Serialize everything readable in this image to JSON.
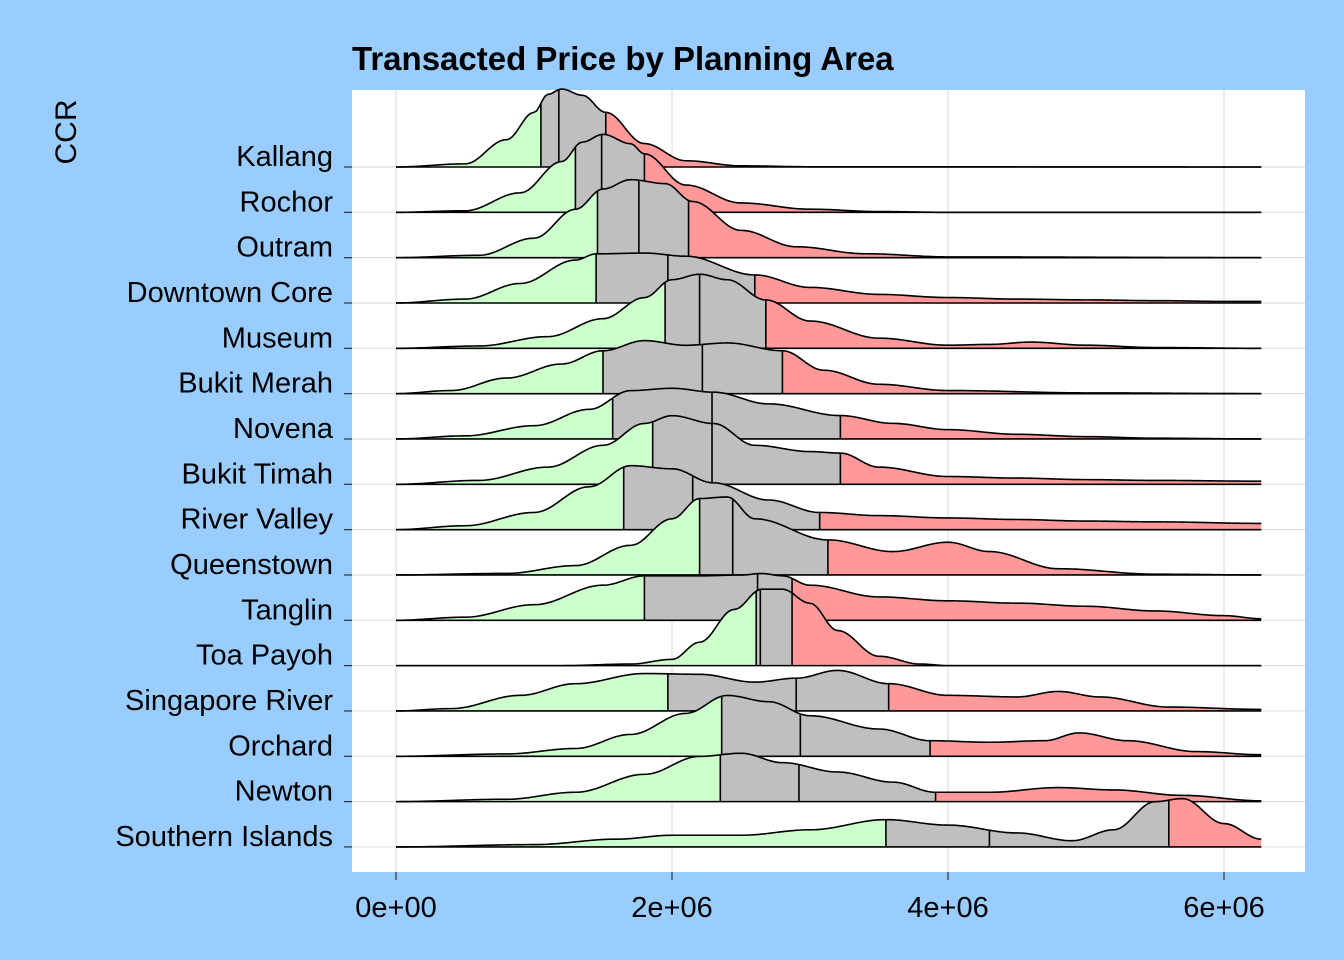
{
  "colors": {
    "background": "#99ccff",
    "panel": "#ffffff",
    "grid": "#e0e0e0",
    "low_tail": "#ccffcc",
    "middle": "#bfbfbf",
    "high_tail": "#ff9999",
    "outline": "#000000"
  },
  "chart_data": {
    "type": "ridgeline",
    "title": "Transacted Price by Planning Area",
    "ylabel": "CCR",
    "xlabel": "",
    "xlim": [
      -320000,
      6600000
    ],
    "xticks": [
      0,
      2000000,
      4000000,
      6000000
    ],
    "xtick_labels": [
      "0e+00",
      "2e+06",
      "4e+06",
      "6e+06"
    ],
    "x_range_drawn": [
      0,
      6270000
    ],
    "grid": true,
    "fill_regions": [
      "low_tail",
      "middle",
      "middle",
      "high_tail"
    ],
    "series": [
      {
        "name": "Kallang",
        "quantiles": [
          1050000,
          1180000,
          1520000
        ],
        "density": [
          [
            0,
            0
          ],
          [
            500000,
            0.04
          ],
          [
            800000,
            0.35
          ],
          [
            1000000,
            0.7
          ],
          [
            1100000,
            0.93
          ],
          [
            1200000,
            1.0
          ],
          [
            1350000,
            0.92
          ],
          [
            1520000,
            0.7
          ],
          [
            1800000,
            0.3
          ],
          [
            2100000,
            0.08
          ],
          [
            2500000,
            0.015
          ],
          [
            3000000,
            0.003
          ],
          [
            6270000,
            0
          ]
        ]
      },
      {
        "name": "Rochor",
        "quantiles": [
          1300000,
          1490000,
          1800000
        ],
        "density": [
          [
            0,
            0
          ],
          [
            500000,
            0.02
          ],
          [
            900000,
            0.25
          ],
          [
            1200000,
            0.65
          ],
          [
            1350000,
            0.9
          ],
          [
            1500000,
            1.0
          ],
          [
            1700000,
            0.88
          ],
          [
            1800000,
            0.75
          ],
          [
            2100000,
            0.35
          ],
          [
            2500000,
            0.12
          ],
          [
            3000000,
            0.04
          ],
          [
            3500000,
            0.01
          ],
          [
            4000000,
            0
          ],
          [
            6270000,
            0
          ]
        ]
      },
      {
        "name": "Outram",
        "quantiles": [
          1460000,
          1760000,
          2120000
        ],
        "density": [
          [
            0,
            0
          ],
          [
            600000,
            0.03
          ],
          [
            1000000,
            0.25
          ],
          [
            1300000,
            0.62
          ],
          [
            1500000,
            0.88
          ],
          [
            1700000,
            1.0
          ],
          [
            1950000,
            0.95
          ],
          [
            2150000,
            0.72
          ],
          [
            2500000,
            0.35
          ],
          [
            2900000,
            0.14
          ],
          [
            3400000,
            0.05
          ],
          [
            4000000,
            0.01
          ],
          [
            6270000,
            0
          ]
        ]
      },
      {
        "name": "Downtown Core",
        "quantiles": [
          1450000,
          1970000,
          2600000
        ],
        "density": [
          [
            0,
            0
          ],
          [
            500000,
            0.05
          ],
          [
            900000,
            0.25
          ],
          [
            1300000,
            0.55
          ],
          [
            1450000,
            0.63
          ],
          [
            1800000,
            0.64
          ],
          [
            2100000,
            0.6
          ],
          [
            2600000,
            0.36
          ],
          [
            3000000,
            0.2
          ],
          [
            3500000,
            0.11
          ],
          [
            4000000,
            0.07
          ],
          [
            4500000,
            0.05
          ],
          [
            5000000,
            0.04
          ],
          [
            5500000,
            0.03
          ],
          [
            6000000,
            0.02
          ],
          [
            6270000,
            0.02
          ]
        ]
      },
      {
        "name": "Museum",
        "quantiles": [
          1950000,
          2200000,
          2680000
        ],
        "density": [
          [
            0,
            0
          ],
          [
            600000,
            0.03
          ],
          [
            1100000,
            0.15
          ],
          [
            1500000,
            0.38
          ],
          [
            1800000,
            0.65
          ],
          [
            2000000,
            0.88
          ],
          [
            2200000,
            0.95
          ],
          [
            2400000,
            0.88
          ],
          [
            2680000,
            0.62
          ],
          [
            3000000,
            0.35
          ],
          [
            3500000,
            0.13
          ],
          [
            4000000,
            0.04
          ],
          [
            4300000,
            0.05
          ],
          [
            4600000,
            0.08
          ],
          [
            5000000,
            0.04
          ],
          [
            5500000,
            0.01
          ],
          [
            6270000,
            0
          ]
        ]
      },
      {
        "name": "Bukit Merah",
        "quantiles": [
          1500000,
          2220000,
          2800000
        ],
        "density": [
          [
            0,
            0
          ],
          [
            400000,
            0.04
          ],
          [
            800000,
            0.2
          ],
          [
            1200000,
            0.38
          ],
          [
            1500000,
            0.55
          ],
          [
            1800000,
            0.68
          ],
          [
            2100000,
            0.62
          ],
          [
            2400000,
            0.65
          ],
          [
            2800000,
            0.55
          ],
          [
            3100000,
            0.3
          ],
          [
            3500000,
            0.12
          ],
          [
            4000000,
            0.04
          ],
          [
            5000000,
            0.01
          ],
          [
            6270000,
            0
          ]
        ]
      },
      {
        "name": "Novena",
        "quantiles": [
          1570000,
          2290000,
          3220000
        ],
        "density": [
          [
            0,
            0
          ],
          [
            500000,
            0.04
          ],
          [
            1000000,
            0.17
          ],
          [
            1400000,
            0.38
          ],
          [
            1700000,
            0.62
          ],
          [
            2000000,
            0.65
          ],
          [
            2300000,
            0.6
          ],
          [
            2700000,
            0.45
          ],
          [
            3220000,
            0.3
          ],
          [
            3600000,
            0.2
          ],
          [
            4000000,
            0.12
          ],
          [
            4500000,
            0.06
          ],
          [
            5000000,
            0.03
          ],
          [
            5500000,
            0.01
          ],
          [
            6270000,
            0
          ]
        ]
      },
      {
        "name": "Bukit Timah",
        "quantiles": [
          1860000,
          2290000,
          3220000
        ],
        "density": [
          [
            0,
            0
          ],
          [
            600000,
            0.05
          ],
          [
            1100000,
            0.22
          ],
          [
            1500000,
            0.5
          ],
          [
            1800000,
            0.78
          ],
          [
            2000000,
            0.88
          ],
          [
            2300000,
            0.78
          ],
          [
            2600000,
            0.5
          ],
          [
            3000000,
            0.42
          ],
          [
            3220000,
            0.4
          ],
          [
            3500000,
            0.22
          ],
          [
            4000000,
            0.1
          ],
          [
            4500000,
            0.08
          ],
          [
            5000000,
            0.06
          ],
          [
            5500000,
            0.05
          ],
          [
            6270000,
            0.04
          ]
        ]
      },
      {
        "name": "River Valley",
        "quantiles": [
          1650000,
          2150000,
          3070000
        ],
        "density": [
          [
            0,
            0
          ],
          [
            500000,
            0.05
          ],
          [
            1000000,
            0.22
          ],
          [
            1400000,
            0.55
          ],
          [
            1700000,
            0.82
          ],
          [
            2000000,
            0.78
          ],
          [
            2300000,
            0.6
          ],
          [
            2700000,
            0.38
          ],
          [
            3070000,
            0.22
          ],
          [
            3500000,
            0.18
          ],
          [
            4000000,
            0.15
          ],
          [
            4500000,
            0.13
          ],
          [
            5000000,
            0.11
          ],
          [
            5500000,
            0.1
          ],
          [
            6270000,
            0.08
          ]
        ]
      },
      {
        "name": "Queenstown",
        "quantiles": [
          2200000,
          2440000,
          3130000
        ],
        "density": [
          [
            0,
            0
          ],
          [
            800000,
            0.02
          ],
          [
            1300000,
            0.12
          ],
          [
            1700000,
            0.38
          ],
          [
            2000000,
            0.72
          ],
          [
            2200000,
            0.98
          ],
          [
            2400000,
            1.0
          ],
          [
            2600000,
            0.72
          ],
          [
            3130000,
            0.45
          ],
          [
            3600000,
            0.3
          ],
          [
            4000000,
            0.42
          ],
          [
            4300000,
            0.3
          ],
          [
            4800000,
            0.08
          ],
          [
            5500000,
            0.01
          ],
          [
            6270000,
            0
          ]
        ]
      },
      {
        "name": "Tanglin",
        "quantiles": [
          1800000,
          2620000,
          2870000
        ],
        "density": [
          [
            0,
            0
          ],
          [
            500000,
            0.04
          ],
          [
            1000000,
            0.2
          ],
          [
            1500000,
            0.45
          ],
          [
            1800000,
            0.57
          ],
          [
            2200000,
            0.57
          ],
          [
            2500000,
            0.58
          ],
          [
            2650000,
            0.6
          ],
          [
            2800000,
            0.57
          ],
          [
            3000000,
            0.45
          ],
          [
            3500000,
            0.3
          ],
          [
            4000000,
            0.25
          ],
          [
            4500000,
            0.22
          ],
          [
            5000000,
            0.18
          ],
          [
            5500000,
            0.12
          ],
          [
            6000000,
            0.06
          ],
          [
            6270000,
            0.02
          ]
        ]
      },
      {
        "name": "Toa Payoh",
        "quantiles": [
          2610000,
          2640000,
          2870000
        ],
        "density": [
          [
            0,
            0
          ],
          [
            1200000,
            0
          ],
          [
            1700000,
            0.02
          ],
          [
            2000000,
            0.08
          ],
          [
            2200000,
            0.3
          ],
          [
            2450000,
            0.72
          ],
          [
            2650000,
            0.98
          ],
          [
            2800000,
            0.98
          ],
          [
            3000000,
            0.8
          ],
          [
            3200000,
            0.45
          ],
          [
            3500000,
            0.12
          ],
          [
            3800000,
            0.02
          ],
          [
            4000000,
            0
          ],
          [
            6270000,
            0
          ]
        ]
      },
      {
        "name": "Singapore River",
        "quantiles": [
          1970000,
          2900000,
          3570000
        ],
        "density": [
          [
            0,
            0
          ],
          [
            400000,
            0.03
          ],
          [
            900000,
            0.2
          ],
          [
            1300000,
            0.35
          ],
          [
            1800000,
            0.48
          ],
          [
            2200000,
            0.47
          ],
          [
            2600000,
            0.37
          ],
          [
            2900000,
            0.42
          ],
          [
            3200000,
            0.52
          ],
          [
            3570000,
            0.35
          ],
          [
            4000000,
            0.2
          ],
          [
            4500000,
            0.18
          ],
          [
            4800000,
            0.25
          ],
          [
            5100000,
            0.18
          ],
          [
            5600000,
            0.05
          ],
          [
            6270000,
            0.02
          ]
        ]
      },
      {
        "name": "Orchard",
        "quantiles": [
          2360000,
          2930000,
          3870000
        ],
        "density": [
          [
            0,
            0
          ],
          [
            800000,
            0.03
          ],
          [
            1300000,
            0.1
          ],
          [
            1700000,
            0.28
          ],
          [
            2100000,
            0.55
          ],
          [
            2400000,
            0.78
          ],
          [
            2700000,
            0.7
          ],
          [
            3000000,
            0.52
          ],
          [
            3500000,
            0.35
          ],
          [
            3870000,
            0.2
          ],
          [
            4300000,
            0.18
          ],
          [
            4700000,
            0.2
          ],
          [
            4950000,
            0.3
          ],
          [
            5300000,
            0.2
          ],
          [
            5800000,
            0.06
          ],
          [
            6270000,
            0.02
          ]
        ]
      },
      {
        "name": "Newton",
        "quantiles": [
          2350000,
          2920000,
          3910000
        ],
        "density": [
          [
            0,
            0
          ],
          [
            800000,
            0.03
          ],
          [
            1300000,
            0.12
          ],
          [
            1800000,
            0.35
          ],
          [
            2200000,
            0.58
          ],
          [
            2500000,
            0.62
          ],
          [
            2800000,
            0.5
          ],
          [
            3200000,
            0.38
          ],
          [
            3600000,
            0.25
          ],
          [
            3910000,
            0.12
          ],
          [
            4300000,
            0.12
          ],
          [
            4800000,
            0.18
          ],
          [
            5200000,
            0.15
          ],
          [
            5700000,
            0.08
          ],
          [
            6270000,
            0.01
          ]
        ]
      },
      {
        "name": "Southern Islands",
        "quantiles": [
          3550000,
          4300000,
          5600000
        ],
        "density": [
          [
            0,
            0
          ],
          [
            1000000,
            0.03
          ],
          [
            1600000,
            0.1
          ],
          [
            2000000,
            0.15
          ],
          [
            2500000,
            0.15
          ],
          [
            3000000,
            0.22
          ],
          [
            3550000,
            0.35
          ],
          [
            4000000,
            0.28
          ],
          [
            4500000,
            0.18
          ],
          [
            4900000,
            0.08
          ],
          [
            5200000,
            0.22
          ],
          [
            5500000,
            0.58
          ],
          [
            5700000,
            0.62
          ],
          [
            6000000,
            0.3
          ],
          [
            6270000,
            0.1
          ]
        ]
      }
    ]
  }
}
